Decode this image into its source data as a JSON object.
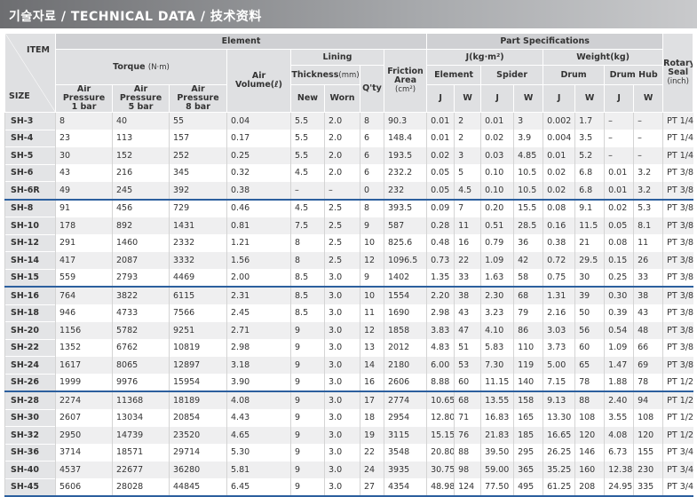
{
  "header": {
    "title": "기술자료 / TECHNICAL DATA / 技术资料"
  },
  "table": {
    "headers": {
      "item": "ITEM",
      "size": "SIZE",
      "element": "Element",
      "part_specifications": "Part Specifications",
      "rotary_seal": "Rotary Seal",
      "rotary_seal_unit": "(inch)",
      "torque": "Torque",
      "torque_unit": "(N·m)",
      "air_volume": "Air Volume(ℓ)",
      "lining": "Lining",
      "thickness": "Thickness",
      "thickness_unit": "(mm)",
      "qty": "Q'ty",
      "friction_area": "Friction Area",
      "friction_area_unit": "(cm²)",
      "j_group": "J(kg·m²)",
      "weight_group": "Weight(kg)",
      "parts": [
        "Element",
        "Spider",
        "Drum",
        "Drum Hub"
      ],
      "air_pressure": [
        [
          "Air Pressure",
          "1 bar"
        ],
        [
          "Air Pressure",
          "5 bar"
        ],
        [
          "Air Pressure",
          "8 bar"
        ]
      ],
      "new": "New",
      "worn": "Worn",
      "j": "J",
      "w": "W"
    },
    "rows": [
      [
        "SH-3",
        "8",
        "40",
        "55",
        "0.04",
        "5.5",
        "2.0",
        "8",
        "90.3",
        "0.01",
        "2",
        "0.01",
        "3",
        "0.002",
        "1.7",
        "–",
        "–",
        "PT 1/4"
      ],
      [
        "SH-4",
        "23",
        "113",
        "157",
        "0.17",
        "5.5",
        "2.0",
        "6",
        "148.4",
        "0.01",
        "2",
        "0.02",
        "3.9",
        "0.004",
        "3.5",
        "–",
        "–",
        "PT 1/4"
      ],
      [
        "SH-5",
        "30",
        "152",
        "252",
        "0.25",
        "5.5",
        "2.0",
        "6",
        "193.5",
        "0.02",
        "3",
        "0.03",
        "4.85",
        "0.01",
        "5.2",
        "–",
        "–",
        "PT 1/4"
      ],
      [
        "SH-6",
        "43",
        "216",
        "345",
        "0.32",
        "4.5",
        "2.0",
        "6",
        "232.2",
        "0.05",
        "5",
        "0.10",
        "10.5",
        "0.02",
        "6.8",
        "0.01",
        "3.2",
        "PT 3/8"
      ],
      [
        "SH-6R",
        "49",
        "245",
        "392",
        "0.38",
        "–",
        "–",
        "0",
        "232",
        "0.05",
        "4.5",
        "0.10",
        "10.5",
        "0.02",
        "6.8",
        "0.01",
        "3.2",
        "PT 3/8"
      ],
      [
        "SH-8",
        "91",
        "456",
        "729",
        "0.46",
        "4.5",
        "2.5",
        "8",
        "393.5",
        "0.09",
        "7",
        "0.20",
        "15.5",
        "0.08",
        "9.1",
        "0.02",
        "5.3",
        "PT 3/8"
      ],
      [
        "SH-10",
        "178",
        "892",
        "1431",
        "0.81",
        "7.5",
        "2.5",
        "9",
        "587",
        "0.28",
        "11",
        "0.51",
        "28.5",
        "0.16",
        "11.5",
        "0.05",
        "8.1",
        "PT 3/8"
      ],
      [
        "SH-12",
        "291",
        "1460",
        "2332",
        "1.21",
        "8",
        "2.5",
        "10",
        "825.6",
        "0.48",
        "16",
        "0.79",
        "36",
        "0.38",
        "21",
        "0.08",
        "11",
        "PT 3/8"
      ],
      [
        "SH-14",
        "417",
        "2087",
        "3332",
        "1.56",
        "8",
        "2.5",
        "12",
        "1096.5",
        "0.73",
        "22",
        "1.09",
        "42",
        "0.72",
        "29.5",
        "0.15",
        "26",
        "PT 3/8"
      ],
      [
        "SH-15",
        "559",
        "2793",
        "4469",
        "2.00",
        "8.5",
        "3.0",
        "9",
        "1402",
        "1.35",
        "33",
        "1.63",
        "58",
        "0.75",
        "30",
        "0.25",
        "33",
        "PT 3/8"
      ],
      [
        "SH-16",
        "764",
        "3822",
        "6115",
        "2.31",
        "8.5",
        "3.0",
        "10",
        "1554",
        "2.20",
        "38",
        "2.30",
        "68",
        "1.31",
        "39",
        "0.30",
        "38",
        "PT 3/8"
      ],
      [
        "SH-18",
        "946",
        "4733",
        "7566",
        "2.45",
        "8.5",
        "3.0",
        "11",
        "1690",
        "2.98",
        "43",
        "3.23",
        "79",
        "2.16",
        "50",
        "0.39",
        "43",
        "PT 3/8"
      ],
      [
        "SH-20",
        "1156",
        "5782",
        "9251",
        "2.71",
        "9",
        "3.0",
        "12",
        "1858",
        "3.83",
        "47",
        "4.10",
        "86",
        "3.03",
        "56",
        "0.54",
        "48",
        "PT 3/8"
      ],
      [
        "SH-22",
        "1352",
        "6762",
        "10819",
        "2.98",
        "9",
        "3.0",
        "13",
        "2012",
        "4.83",
        "51",
        "5.83",
        "110",
        "3.73",
        "60",
        "1.09",
        "66",
        "PT 3/8"
      ],
      [
        "SH-24",
        "1617",
        "8065",
        "12897",
        "3.18",
        "9",
        "3.0",
        "14",
        "2180",
        "6.00",
        "53",
        "7.30",
        "119",
        "5.00",
        "65",
        "1.47",
        "69",
        "PT 3/8"
      ],
      [
        "SH-26",
        "1999",
        "9976",
        "15954",
        "3.90",
        "9",
        "3.0",
        "16",
        "2606",
        "8.88",
        "60",
        "11.15",
        "140",
        "7.15",
        "78",
        "1.88",
        "78",
        "PT 1/2"
      ],
      [
        "SH-28",
        "2274",
        "11368",
        "18189",
        "4.08",
        "9",
        "3.0",
        "17",
        "2774",
        "10.65",
        "68",
        "13.55",
        "158",
        "9.13",
        "88",
        "2.40",
        "94",
        "PT 1/2"
      ],
      [
        "SH-30",
        "2607",
        "13034",
        "20854",
        "4.43",
        "9",
        "3.0",
        "18",
        "2954",
        "12.80",
        "71",
        "16.83",
        "165",
        "13.30",
        "108",
        "3.55",
        "108",
        "PT 1/2"
      ],
      [
        "SH-32",
        "2950",
        "14739",
        "23520",
        "4.65",
        "9",
        "3.0",
        "19",
        "3115",
        "15.15",
        "76",
        "21.83",
        "185",
        "16.65",
        "120",
        "4.08",
        "120",
        "PT 1/2"
      ],
      [
        "SH-36",
        "3714",
        "18571",
        "29714",
        "5.30",
        "9",
        "3.0",
        "22",
        "3548",
        "20.80",
        "88",
        "39.50",
        "295",
        "26.25",
        "146",
        "6.73",
        "155",
        "PT 3/4"
      ],
      [
        "SH-40",
        "4537",
        "22677",
        "36280",
        "5.81",
        "9",
        "3.0",
        "24",
        "3935",
        "30.75",
        "98",
        "59.00",
        "365",
        "35.25",
        "160",
        "12.38",
        "230",
        "PT 3/4"
      ],
      [
        "SH-45",
        "5606",
        "28028",
        "44845",
        "6.45",
        "9",
        "3.0",
        "27",
        "4354",
        "48.98",
        "124",
        "77.50",
        "495",
        "61.25",
        "208",
        "24.95",
        "335",
        "PT 3/4"
      ]
    ]
  }
}
